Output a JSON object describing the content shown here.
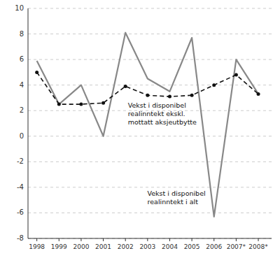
{
  "chart_data": {
    "type": "line",
    "x": [
      1998,
      1999,
      2000,
      2001,
      2002,
      2003,
      2004,
      2005,
      2006,
      2007,
      2008
    ],
    "xlim": [
      1997.6,
      2008.6
    ],
    "xticks": [
      1998,
      1999,
      2000,
      2001,
      2002,
      2003,
      2004,
      2005,
      2006,
      {
        "value": 2007,
        "label": "2007*"
      },
      {
        "value": 2008,
        "label": "2008*"
      }
    ],
    "ylim": [
      -8,
      10
    ],
    "yticks": [
      -8,
      -6,
      -4,
      -2,
      0,
      2,
      4,
      6,
      8,
      10
    ],
    "grid": true,
    "series": [
      {
        "color": "#888888",
        "line_style": "solid",
        "values": [
          5.9,
          2.5,
          4.0,
          0.0,
          8.1,
          4.5,
          3.5,
          7.7,
          -6.3,
          6.0,
          3.3
        ]
      },
      {
        "color": "#111111",
        "line_style": "dashed",
        "marker": "circle",
        "values": [
          5.0,
          2.5,
          2.5,
          2.6,
          3.9,
          3.2,
          3.1,
          3.2,
          4.0,
          4.8,
          3.3
        ]
      }
    ],
    "annotations": [
      "Vekst i disponibel\nrealinntekt ekskl.\nmottatt aksjeutbytte",
      "Vekst i disponibel\nrealinntekt i alt"
    ]
  }
}
